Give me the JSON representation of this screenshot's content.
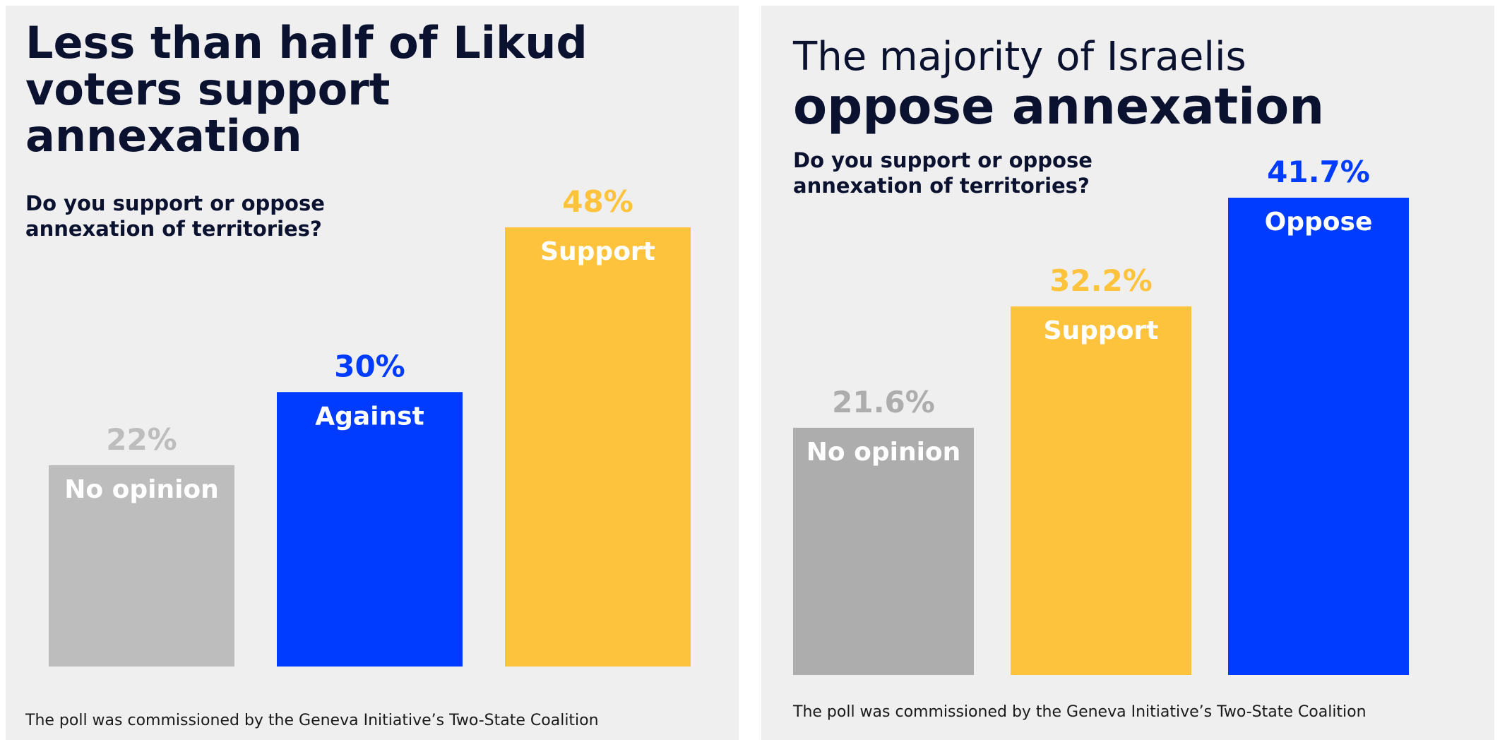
{
  "colors": {
    "background": "#efefef",
    "title": "#0b1230",
    "gray": "#bdbdbd",
    "gray_dark": "#adadad",
    "blue": "#003cff",
    "yellow": "#fdc33c"
  },
  "left": {
    "title": "Less than half of Likud voters support annexation",
    "question": "Do you support or oppose annexation of territories?",
    "footnote": "The poll was commissioned by the Geneva Initiative’s Two-State Coalition"
  },
  "right": {
    "title_line1": "The majority of Israelis",
    "title_line2": "oppose annexation",
    "question": "Do you support or oppose annexation of territories?",
    "footnote": "The poll was commissioned by the Geneva Initiative’s Two-State Coalition"
  },
  "chart_data": [
    {
      "type": "bar",
      "title": "Less than half of Likud voters support annexation",
      "subtitle": "Do you support or oppose annexation of territories?",
      "categories": [
        "No opinion",
        "Against",
        "Support"
      ],
      "values": [
        22,
        30,
        48
      ],
      "value_labels": [
        "22%",
        "30%",
        "48%"
      ],
      "colors": [
        "#bdbdbd",
        "#003cff",
        "#fdc33c"
      ],
      "ylim": [
        0,
        48
      ],
      "grid": false
    },
    {
      "type": "bar",
      "title": "The majority of Israelis oppose annexation",
      "subtitle": "Do you support or oppose annexation of territories?",
      "categories": [
        "No opinion",
        "Support",
        "Oppose"
      ],
      "values": [
        21.6,
        32.2,
        41.7
      ],
      "value_labels": [
        "21.6%",
        "32.2%",
        "41.7%"
      ],
      "colors": [
        "#adadad",
        "#fdc33c",
        "#003cff"
      ],
      "ylim": [
        0,
        41.7
      ],
      "grid": false
    }
  ]
}
